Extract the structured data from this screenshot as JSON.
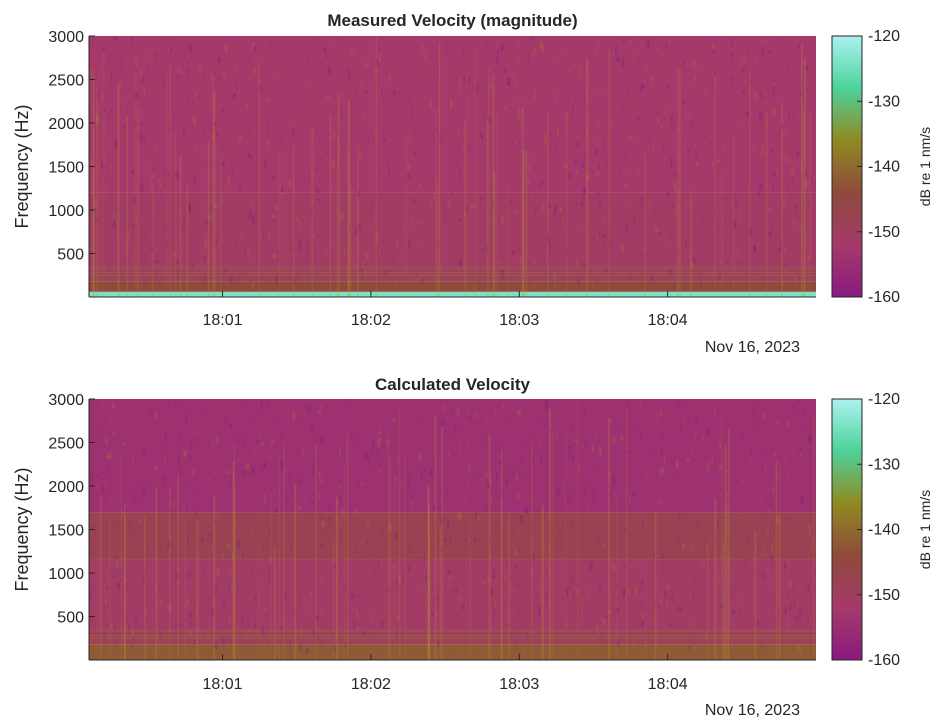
{
  "colors": {
    "colormap": [
      "#8a1a80",
      "#a53a6a",
      "#8f4a3c",
      "#8f8a20",
      "#4ed29a",
      "#aaf2f0"
    ],
    "text": "#262626",
    "axes_line": "#262626"
  },
  "chart_data": [
    {
      "type": "heatmap",
      "title": "Measured Velocity (magnitude)",
      "ylabel": "Frequency (Hz)",
      "xlabel": "",
      "y_ticks": [
        500,
        1000,
        1500,
        2000,
        2500,
        3000
      ],
      "ylim": [
        0,
        3000
      ],
      "x_ticks": [
        "18:01",
        "18:02",
        "18:03",
        "18:04"
      ],
      "x_tick_minutes": [
        1,
        2,
        3,
        4
      ],
      "xlim_minutes": [
        0.1,
        5.0
      ],
      "date_label": "Nov 16, 2023",
      "colorbar": {
        "label": "dB re 1 nm/s",
        "ticks": [
          -120,
          -130,
          -140,
          -150,
          -160
        ],
        "clim": [
          -160,
          -120
        ]
      },
      "bands": [
        {
          "f_low": 0,
          "f_high": 60,
          "db": -124
        },
        {
          "f_low": 60,
          "f_high": 180,
          "db": -144
        },
        {
          "f_low": 180,
          "f_high": 350,
          "db": -149
        },
        {
          "f_low": 350,
          "f_high": 1200,
          "db": -151
        },
        {
          "f_low": 1200,
          "f_high": 3000,
          "db": -152
        }
      ]
    },
    {
      "type": "heatmap",
      "title": "Calculated Velocity",
      "ylabel": "Frequency (Hz)",
      "xlabel": "",
      "y_ticks": [
        500,
        1000,
        1500,
        2000,
        2500,
        3000
      ],
      "ylim": [
        0,
        3000
      ],
      "x_ticks": [
        "18:01",
        "18:02",
        "18:03",
        "18:04"
      ],
      "x_tick_minutes": [
        1,
        2,
        3,
        4
      ],
      "xlim_minutes": [
        0.1,
        5.0
      ],
      "date_label": "Nov 16, 2023",
      "colorbar": {
        "label": "dB re 1 nm/s",
        "ticks": [
          -120,
          -130,
          -140,
          -150,
          -160
        ],
        "clim": [
          -160,
          -120
        ]
      },
      "bands": [
        {
          "f_low": 0,
          "f_high": 180,
          "db": -142
        },
        {
          "f_low": 180,
          "f_high": 350,
          "db": -149
        },
        {
          "f_low": 350,
          "f_high": 1150,
          "db": -151
        },
        {
          "f_low": 1150,
          "f_high": 1700,
          "db": -148
        },
        {
          "f_low": 1700,
          "f_high": 3000,
          "db": -154
        }
      ]
    }
  ]
}
